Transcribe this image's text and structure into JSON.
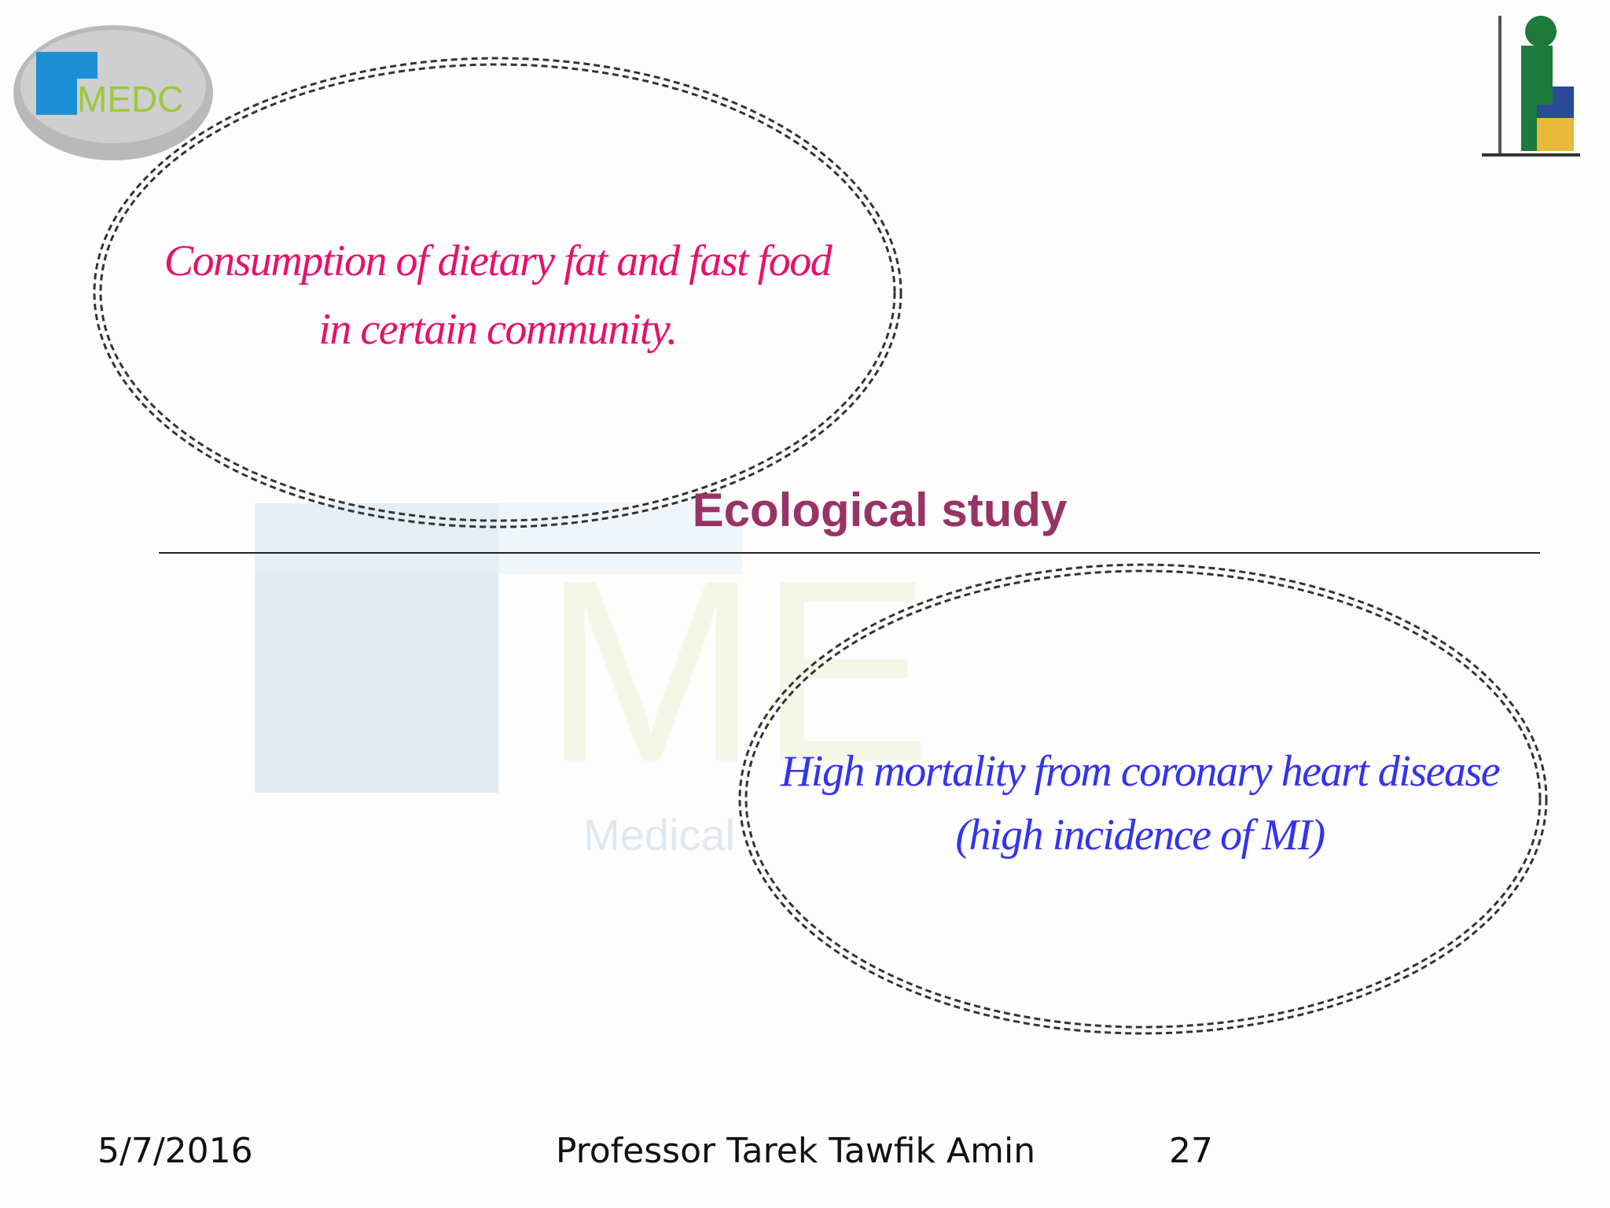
{
  "logo": {
    "text": "MEDC"
  },
  "watermark": {
    "big": "ME",
    "small": "Medical"
  },
  "bubbles": [
    {
      "lines": [
        "Consumption of dietary fat and fast food",
        "in certain community."
      ]
    },
    {
      "lines": [
        "High mortality from coronary heart disease",
        "(high incidence of MI)"
      ]
    }
  ],
  "title": "Ecological study",
  "footer": {
    "date": "5/7/2016",
    "author": "Professor Tarek Tawfik Amin",
    "page": "27"
  }
}
